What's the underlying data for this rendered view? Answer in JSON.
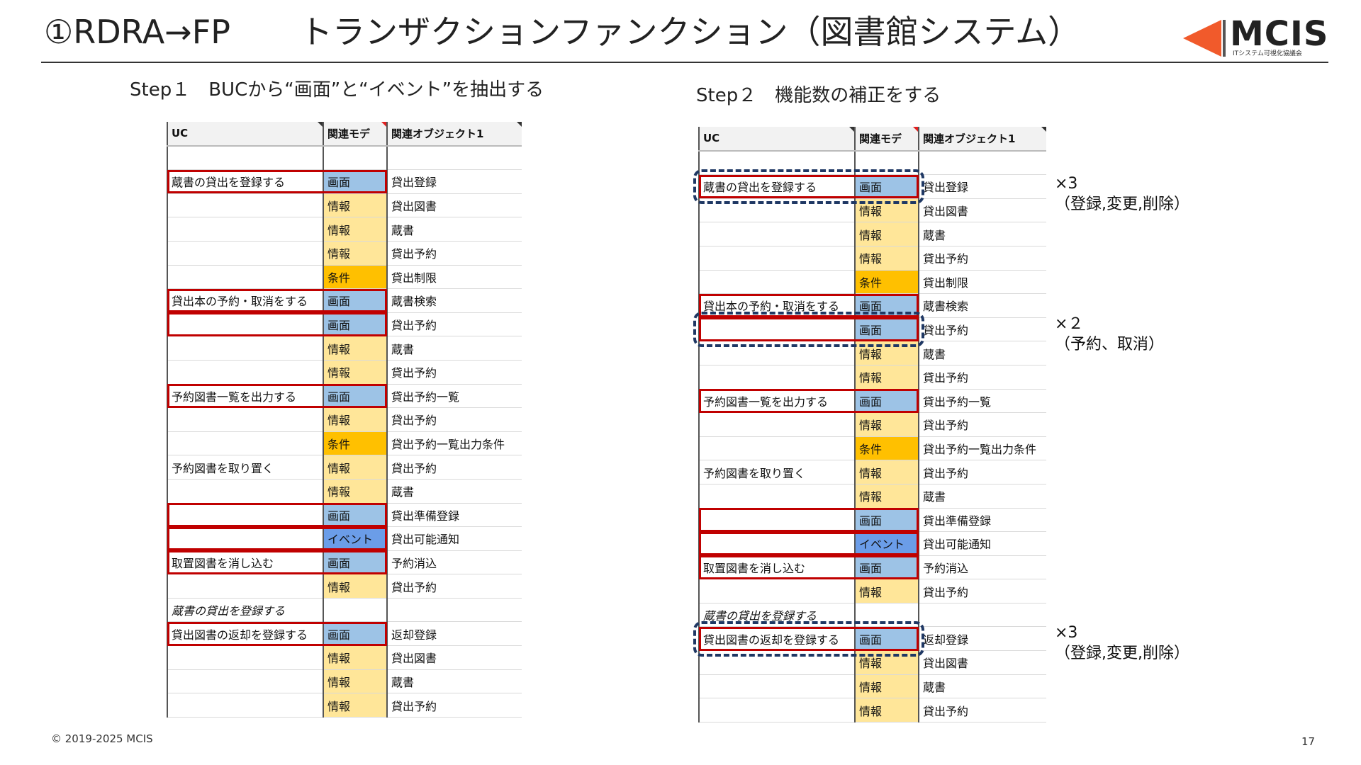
{
  "title": {
    "left": "①RDRA→FP",
    "right": "トランザクションファンクション（図書館システム）"
  },
  "logo": {
    "name": "MCIS",
    "sub": "ITシステム可視化協議会",
    "color": "#f15a2b"
  },
  "step1": {
    "label": "Step１",
    "text": "BUCから“画面”と“イベント”を抽出する"
  },
  "step2": {
    "label": "Step２",
    "text": "機能数の補正をする"
  },
  "table_headers": [
    "UC",
    "関連モデ",
    "関連オブジェクト1"
  ],
  "step1_rows": [
    {
      "uc": "",
      "cat": "",
      "obj": ""
    },
    {
      "uc": "蔵書の貸出を登録する",
      "cat": "画面",
      "obj": "貸出登録"
    },
    {
      "uc": "",
      "cat": "情報",
      "obj": "貸出図書"
    },
    {
      "uc": "",
      "cat": "情報",
      "obj": "蔵書"
    },
    {
      "uc": "",
      "cat": "情報",
      "obj": "貸出予約"
    },
    {
      "uc": "",
      "cat": "条件",
      "obj": "貸出制限"
    },
    {
      "uc": "貸出本の予約・取消をする",
      "cat": "画面",
      "obj": "蔵書検索"
    },
    {
      "uc": "",
      "cat": "画面",
      "obj": "貸出予約"
    },
    {
      "uc": "",
      "cat": "情報",
      "obj": "蔵書"
    },
    {
      "uc": "",
      "cat": "情報",
      "obj": "貸出予約"
    },
    {
      "uc": "予約図書一覧を出力する",
      "cat": "画面",
      "obj": "貸出予約一覧"
    },
    {
      "uc": "",
      "cat": "情報",
      "obj": "貸出予約"
    },
    {
      "uc": "",
      "cat": "条件",
      "obj": "貸出予約一覧出力条件"
    },
    {
      "uc": "予約図書を取り置く",
      "cat": "情報",
      "obj": "貸出予約"
    },
    {
      "uc": "",
      "cat": "情報",
      "obj": "蔵書"
    },
    {
      "uc": "",
      "cat": "画面",
      "obj": "貸出準備登録"
    },
    {
      "uc": "",
      "cat": "イベント",
      "obj": "貸出可能通知"
    },
    {
      "uc": "取置図書を消し込む",
      "cat": "画面",
      "obj": "予約消込"
    },
    {
      "uc": "",
      "cat": "情報",
      "obj": "貸出予約"
    },
    {
      "uc": "蔵書の貸出を登録する",
      "cat": "",
      "obj": ""
    },
    {
      "uc": "貸出図書の返却を登録する",
      "cat": "画面",
      "obj": "返却登録"
    },
    {
      "uc": "",
      "cat": "情報",
      "obj": "貸出図書"
    },
    {
      "uc": "",
      "cat": "情報",
      "obj": "蔵書"
    },
    {
      "uc": "",
      "cat": "情報",
      "obj": "貸出予約"
    }
  ],
  "multipliers": [
    {
      "count": "×3",
      "detail": "（登録,変更,削除）"
    },
    {
      "count": "×２",
      "detail": "（予約、取消）"
    },
    {
      "count": "×3",
      "detail": "（登録,変更,削除）"
    }
  ],
  "footer": {
    "copyright": "© 2019-2025 MCIS",
    "page": "17"
  }
}
